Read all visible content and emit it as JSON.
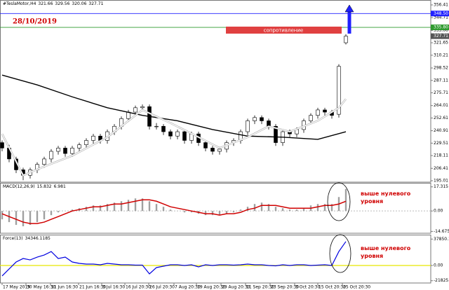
{
  "chart_data": [
    {
      "type": "candlestick",
      "symbol": "#TeslaMotor,H4",
      "date_note": "28/10/2019",
      "resistance_label": "сопротивление",
      "up_color": "#ffffff",
      "down_color": "#000000",
      "x": [
        0,
        1,
        2,
        3,
        4,
        5,
        6,
        7,
        8,
        9,
        10,
        11,
        12,
        13,
        14,
        15,
        16,
        17,
        18,
        19,
        20,
        21,
        22,
        23,
        24,
        25,
        26,
        27,
        28,
        29,
        30,
        31,
        32,
        33,
        34,
        35,
        36,
        37,
        38,
        39,
        40,
        41,
        42,
        43,
        44,
        45,
        46,
        47,
        48,
        49
      ],
      "open": [
        230,
        225,
        215,
        205,
        200,
        205,
        210,
        215,
        222,
        225,
        220,
        225,
        228,
        232,
        236,
        232,
        240,
        245,
        252,
        258,
        262,
        263,
        245,
        245,
        240,
        236,
        240,
        232,
        238,
        230,
        225,
        222,
        224,
        230,
        232,
        240,
        250,
        253,
        250,
        245,
        230,
        240,
        238,
        242,
        250,
        255,
        260,
        258,
        256,
        321.66
      ],
      "high": [
        232,
        228,
        217,
        207,
        207,
        212,
        217,
        224,
        227,
        227,
        227,
        230,
        234,
        238,
        238,
        242,
        247,
        254,
        260,
        264,
        265,
        265,
        248,
        247,
        242,
        242,
        242,
        240,
        240,
        232,
        227,
        226,
        232,
        234,
        242,
        252,
        255,
        255,
        252,
        247,
        242,
        242,
        244,
        252,
        257,
        262,
        262,
        260,
        302,
        329.56
      ],
      "low": [
        222,
        212,
        202,
        195.5,
        197,
        202,
        207,
        212,
        219,
        217,
        217,
        222,
        225,
        229,
        229,
        229,
        237,
        242,
        249,
        255,
        259,
        242,
        242,
        237,
        233,
        233,
        229,
        229,
        227,
        222,
        219,
        219,
        221,
        227,
        229,
        237,
        247,
        247,
        242,
        227,
        227,
        235,
        235,
        239,
        247,
        252,
        255,
        252,
        253,
        320.06
      ],
      "close": [
        225,
        215,
        205,
        200,
        205,
        210,
        215,
        222,
        225,
        220,
        225,
        228,
        232,
        236,
        232,
        240,
        245,
        252,
        258,
        262,
        263,
        245,
        245,
        240,
        236,
        240,
        232,
        238,
        230,
        225,
        222,
        224,
        230,
        232,
        240,
        250,
        253,
        250,
        245,
        230,
        240,
        238,
        242,
        250,
        255,
        260,
        258,
        255,
        300,
        327.71
      ],
      "ma": [
        {
          "color": "#000000",
          "x": [
            0,
            5,
            10,
            15,
            20,
            25,
            30,
            35,
            40,
            45,
            49
          ],
          "values": [
            292,
            283,
            272,
            262,
            255,
            250,
            242,
            236,
            235,
            233,
            240
          ]
        },
        {
          "color": "#ffffff",
          "x": [
            0,
            3,
            6,
            10,
            15,
            20,
            24,
            28,
            31,
            35,
            38,
            41,
            45,
            48,
            49
          ],
          "values": [
            238,
            200,
            208,
            218,
            235,
            260,
            248,
            235,
            225,
            235,
            245,
            240,
            250,
            262,
            270
          ]
        }
      ],
      "hlines": [
        {
          "value": 348.5,
          "label": "348.50",
          "color": "#2020ff"
        },
        {
          "value": 335.8,
          "label": "335.80",
          "color": "#2e9a2e"
        }
      ],
      "xlim": [
        0,
        61
      ],
      "xticks": [
        {
          "value": 0,
          "label": "17 May 2019"
        },
        {
          "value": 3.4,
          "label": "30 May 16:30"
        },
        {
          "value": 6.9,
          "label": "11 Jun 16:30"
        },
        {
          "value": 10.9,
          "label": "21 Jun 16:30"
        },
        {
          "value": 14.2,
          "label": "3 Jul 16:30"
        },
        {
          "value": 17.5,
          "label": "16 Jul 20:30"
        },
        {
          "value": 20.9,
          "label": "26 Jul 20:30"
        },
        {
          "value": 24.5,
          "label": "7 Aug 20:30"
        },
        {
          "value": 27.7,
          "label": "19 Aug 20:30"
        },
        {
          "value": 31.2,
          "label": "29 Aug 20:30"
        },
        {
          "value": 34.7,
          "label": "11 Sep 20:30"
        },
        {
          "value": 38.2,
          "label": "23 Sep 20:30"
        },
        {
          "value": 41.7,
          "label": "3 Oct 20:30"
        },
        {
          "value": 45,
          "label": "15 Oct 20:30"
        },
        {
          "value": 48.5,
          "label": "25 Oct 20:30"
        }
      ],
      "ylim": [
        195.01,
        356.41
      ],
      "yticks": [
        356.41,
        344.71,
        {
          "value": 333,
          "label": "333.00"
        },
        321.65,
        310.21,
        298.52,
        287.11,
        275.71,
        264.01,
        252.61,
        240.91,
        229.51,
        218.11,
        206.41,
        195.01
      ]
    },
    {
      "type": "bar",
      "title": "MACD(12,26,9)",
      "color": "#a0a0a0",
      "values": [
        -6,
        -8,
        -10,
        -11,
        -10,
        -8,
        -6,
        -3,
        -1,
        0,
        1,
        2,
        3,
        4,
        4,
        5,
        6,
        7,
        8,
        9,
        9,
        7,
        5,
        3,
        1,
        0,
        -1,
        -1,
        -2,
        -3,
        -3,
        -3,
        -2,
        -1,
        1,
        3,
        5,
        6,
        5,
        3,
        2,
        1,
        1,
        2,
        4,
        5,
        5,
        5,
        10,
        15.832
      ],
      "signal": {
        "color": "#d00000",
        "values": [
          -2,
          -4,
          -6,
          -8,
          -9,
          -9,
          -8,
          -6,
          -4,
          -2,
          0,
          1,
          2,
          3,
          3,
          4,
          5,
          5,
          6,
          7,
          8,
          8,
          7,
          5,
          3,
          2,
          1,
          0,
          -1,
          -2,
          -2,
          -3,
          -2,
          -2,
          -1,
          1,
          2,
          4,
          4,
          4,
          3,
          2,
          2,
          2,
          2,
          3,
          4,
          4,
          5,
          6.981
        ]
      },
      "annotation": [
        "выше нулевого",
        "уровня"
      ],
      "ylim": [
        -16,
        19.7
      ],
      "yticks": [
        17.315,
        {
          "value": 0,
          "label": "0.00"
        },
        -14.675
      ]
    },
    {
      "type": "line",
      "title": "Force(13)",
      "color": "#0000e0",
      "zero_color": "#e8e800",
      "values": [
        -15000,
        -5000,
        5000,
        10000,
        8000,
        12000,
        15000,
        20000,
        10000,
        12000,
        5000,
        3000,
        2000,
        2000,
        1000,
        3000,
        2000,
        1000,
        1000,
        500,
        500,
        -12000,
        -3000,
        -1000,
        1000,
        1000,
        0,
        1000,
        -2000,
        1000,
        0,
        1000,
        1000,
        500,
        1000,
        2000,
        1000,
        1000,
        0,
        -500,
        1000,
        0,
        1000,
        1000,
        0,
        500,
        1000,
        0,
        20000,
        34346.1185
      ],
      "annotation": [
        "выше нулевого",
        "уровня"
      ],
      "ylim": [
        -25100,
        43170
      ],
      "yticks": [
        37850.17,
        {
          "value": 0,
          "label": "0.00"
        },
        -21825.54
      ]
    }
  ]
}
